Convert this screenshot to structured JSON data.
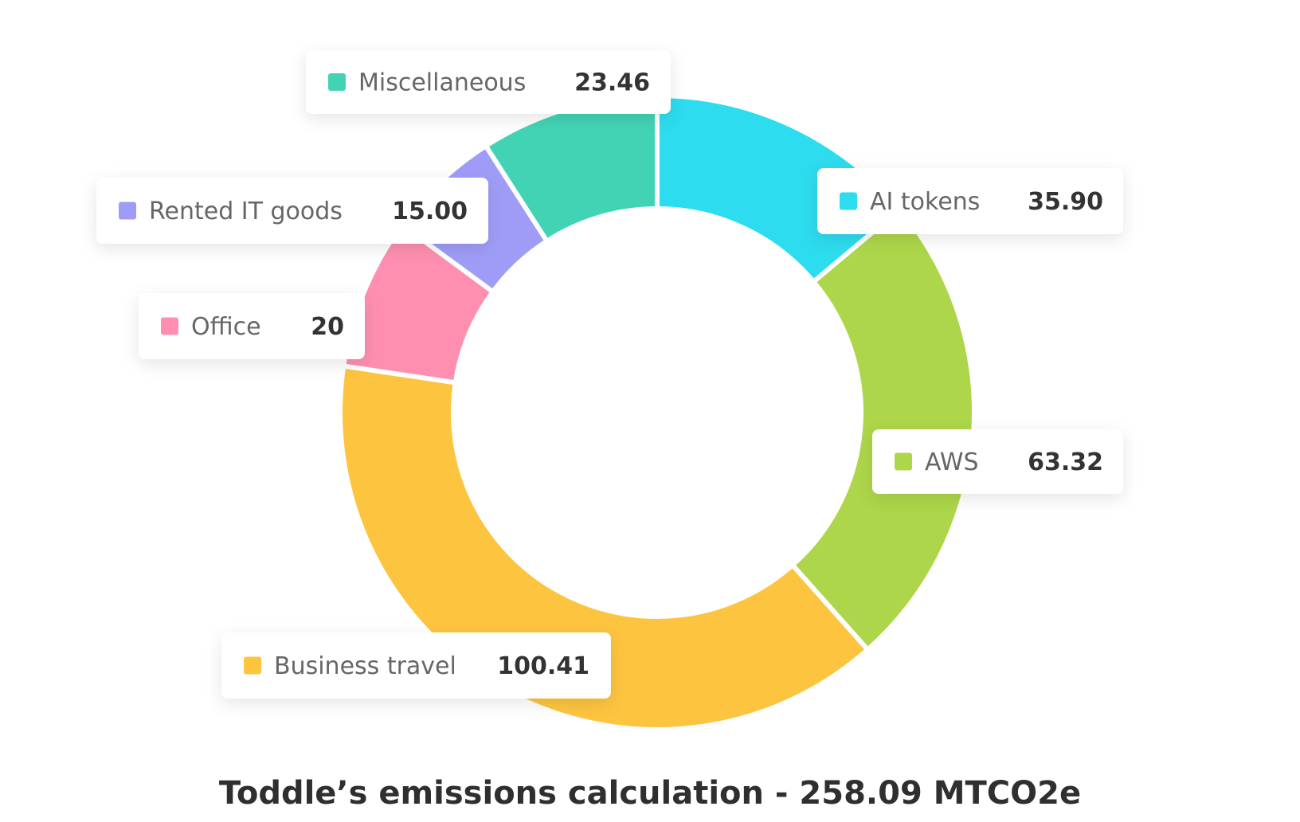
{
  "chart_data": {
    "type": "donut",
    "title": "Toddle’s emissions calculation - 258.09 MTCO2e",
    "categories": [
      "AI tokens",
      "AWS",
      "Business travel",
      "Office",
      "Rented IT goods",
      "Miscellaneous"
    ],
    "values": [
      35.9,
      63.32,
      100.41,
      20,
      15.0,
      23.46
    ],
    "value_labels": [
      "35.90",
      "63.32",
      "100.41",
      "20",
      "15.00",
      "23.46"
    ],
    "colors": [
      "#2ddcee",
      "#add64a",
      "#fdc440",
      "#fe8fb0",
      "#9f9cf8",
      "#42d3b5"
    ]
  }
}
